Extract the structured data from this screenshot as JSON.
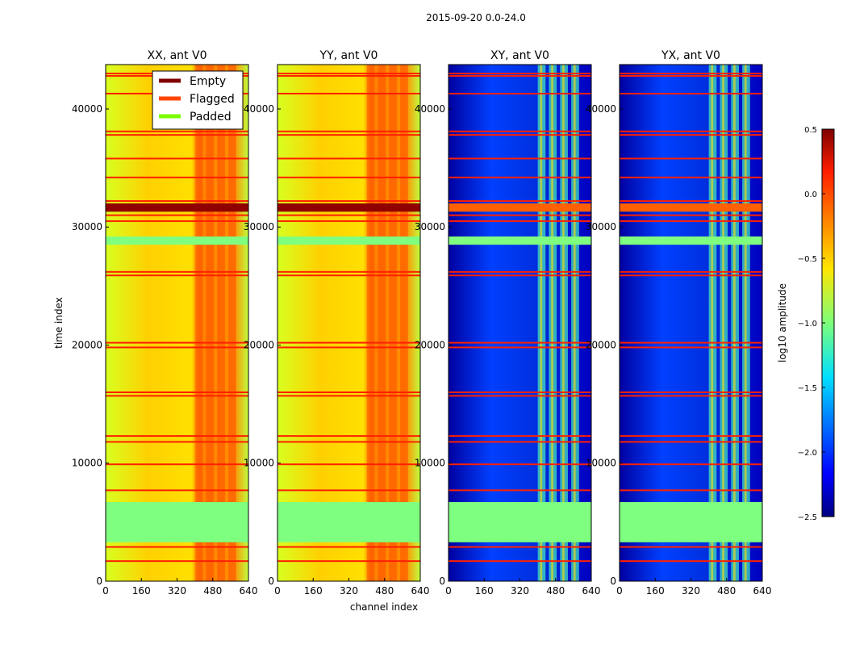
{
  "chart_data": {
    "type": "heatmap",
    "title": "2015-09-20 0.0-24.0",
    "xlabel": "channel index",
    "ylabel": "time index",
    "xlim": [
      0,
      640
    ],
    "ylim": [
      0,
      43760
    ],
    "xticks": [
      0,
      160,
      320,
      480,
      640
    ],
    "yticks": [
      0,
      10000,
      20000,
      30000,
      40000
    ],
    "panels": [
      {
        "title": "XX, ant V0",
        "kind": "auto"
      },
      {
        "title": "YY, ant V0",
        "kind": "auto"
      },
      {
        "title": "XY, ant V0",
        "kind": "cross"
      },
      {
        "title": "YX, ant V0",
        "kind": "cross"
      }
    ],
    "padded_time_ranges": [
      [
        3300,
        6700
      ],
      [
        28500,
        29200
      ]
    ],
    "empty_time_ranges": [
      [
        31300,
        32000
      ]
    ],
    "flagged_time_rows": [
      1700,
      2900,
      7700,
      9900,
      11800,
      12300,
      15700,
      16000,
      19800,
      20200,
      25900,
      26200,
      30500,
      31000,
      32200,
      34200,
      35800,
      37800,
      38100,
      41300,
      42800,
      43000
    ],
    "bright_channel_range": [
      400,
      600
    ],
    "legend": {
      "position": "top-right",
      "entries": [
        {
          "label": "Empty",
          "color": "#800000"
        },
        {
          "label": "Flagged",
          "color": "#ff4500"
        },
        {
          "label": "Padded",
          "color": "#7cfc00"
        }
      ]
    },
    "colorbar": {
      "label": "log10 amplitude",
      "ticks": [
        "0.5",
        "0.0",
        "−0.5",
        "−1.0",
        "−1.5",
        "−2.0",
        "−2.5"
      ],
      "range": [
        -2.5,
        0.5
      ],
      "colormap": "jet"
    }
  }
}
